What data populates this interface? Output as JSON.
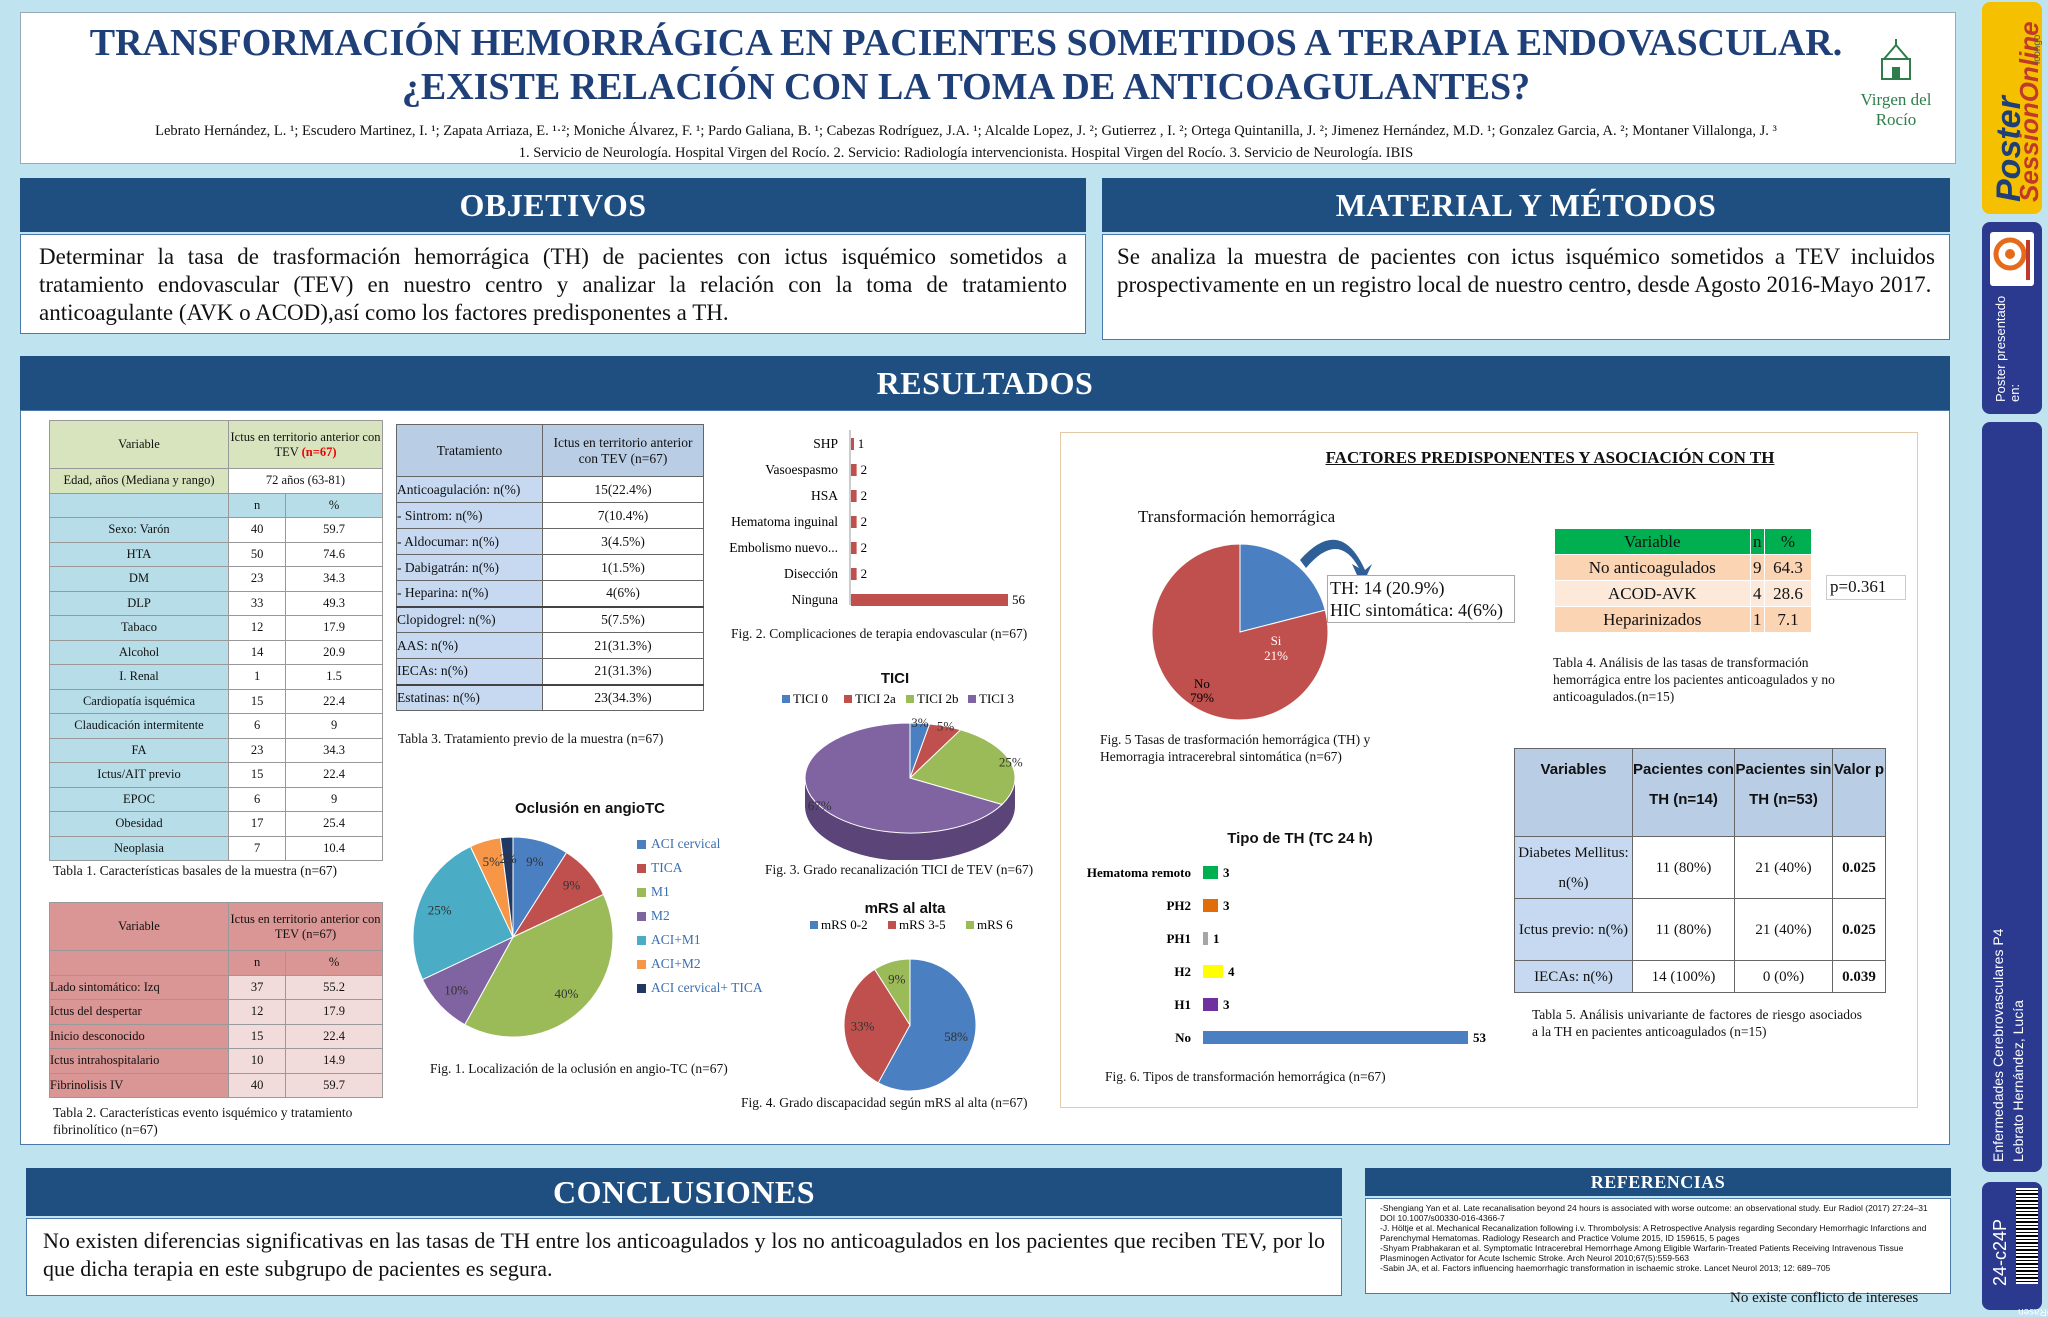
{
  "header": {
    "title_line1": "TRANSFORMACIÓN HEMORRÁGICA EN PACIENTES SOMETIDOS A TERAPIA ENDOVASCULAR.",
    "title_line2": "¿EXISTE RELACIÓN CON LA TOMA DE ANTICOAGULANTES?",
    "authors": "Lebrato Hernández, L. ¹; Escudero Martinez, I. ¹; Zapata Arriaza, E. ¹·²; Moniche Álvarez, F. ¹; Pardo Galiana, B. ¹; Cabezas Rodríguez, J.A. ¹; Alcalde Lopez, J. ²; Gutierrez , I. ²; Ortega Quintanilla, J. ²; Jimenez Hernández, M.D. ¹; Gonzalez Garcia, A. ²; Montaner Villalonga, J. ³",
    "affiliations": "1. Servicio de Neurología. Hospital Virgen del Rocío. 2. Servicio: Radiología intervencionista. Hospital Virgen del Rocío. 3. Servicio de Neurología. IBIS",
    "logo": "Virgen del Rocío"
  },
  "objetivos": {
    "title": "OBJETIVOS",
    "text": "Determinar la tasa de trasformación hemorrágica (TH) de pacientes con ictus isquémico sometidos a tratamiento endovascular (TEV) en nuestro centro y analizar la relación con la toma de tratamiento anticoagulante (AVK o ACOD),así como los factores predisponentes a TH."
  },
  "metodos": {
    "title": "MATERIAL Y MÉTODOS",
    "text": "Se analiza la muestra de pacientes con ictus isquémico sometidos a TEV incluidos prospectivamente en un registro local de nuestro centro, desde Agosto 2016-Mayo 2017."
  },
  "resultados": {
    "title": "RESULTADOS"
  },
  "tabla1": {
    "h_var": "Variable",
    "h_ictus": "Ictus en territorio anterior con TEV ",
    "h_n": "(n=67)",
    "edad_label": "Edad, años (Mediana y rango)",
    "edad_val": "72 años (63-81)",
    "sub_n": "n",
    "sub_pct": "%",
    "rows": [
      [
        "Sexo: Varón",
        "40",
        "59.7"
      ],
      [
        "HTA",
        "50",
        "74.6"
      ],
      [
        "DM",
        "23",
        "34.3"
      ],
      [
        "DLP",
        "33",
        "49.3"
      ],
      [
        "Tabaco",
        "12",
        "17.9"
      ],
      [
        "Alcohol",
        "14",
        "20.9"
      ],
      [
        "I. Renal",
        "1",
        "1.5"
      ],
      [
        "Cardiopatía isquémica",
        "15",
        "22.4"
      ],
      [
        "Claudicación intermitente",
        "6",
        "9"
      ],
      [
        "FA",
        "23",
        "34.3"
      ],
      [
        "Ictus/AIT previo",
        "15",
        "22.4"
      ],
      [
        "EPOC",
        "6",
        "9"
      ],
      [
        "Obesidad",
        "17",
        "25.4"
      ],
      [
        "Neoplasia",
        "7",
        "10.4"
      ]
    ],
    "caption": "Tabla 1. Características basales de la muestra (n=67)"
  },
  "tabla2": {
    "h_var": "Variable",
    "h_ictus": "Ictus en territorio anterior con TEV (n=67)",
    "sub_n": "n",
    "sub_pct": "%",
    "rows": [
      [
        "Lado sintomático: Izq",
        "37",
        "55.2"
      ],
      [
        "Ictus del despertar",
        "12",
        "17.9"
      ],
      [
        "Inicio desconocido",
        "15",
        "22.4"
      ],
      [
        "Ictus intrahospitalario",
        "10",
        "14.9"
      ],
      [
        "Fibrinolisis IV",
        "40",
        "59.7"
      ]
    ],
    "caption": "Tabla 2. Características evento isquémico y tratamiento fibrinolítico (n=67)"
  },
  "tabla3": {
    "h_trat": "Tratamiento",
    "h_ictus": "Ictus en territorio anterior con TEV (n=67)",
    "rows": [
      [
        "Anticoagulación: n(%)",
        "15(22.4%)"
      ],
      [
        "-  Sintrom: n(%)",
        "7(10.4%)"
      ],
      [
        "-  Aldocumar: n(%)",
        "3(4.5%)"
      ],
      [
        "-  Dabigatrán: n(%)",
        "1(1.5%)"
      ],
      [
        "-  Heparina: n(%)",
        "4(6%)"
      ],
      [
        "Clopidogrel: n(%)",
        "5(7.5%)"
      ],
      [
        "AAS: n(%)",
        "21(31.3%)"
      ],
      [
        "IECAs: n(%)",
        "21(31.3%)"
      ],
      [
        "Estatinas: n(%)",
        "23(34.3%)"
      ]
    ],
    "caption": "Tabla 3. Tratamiento previo de la muestra (n=67)"
  },
  "fig1": {
    "title": "Oclusión en angioTC",
    "caption": "Fig. 1. Localización de la oclusión en angio-TC (n=67)"
  },
  "fig2": {
    "caption": "Fig. 2. Complicaciones de terapia endovascular (n=67)"
  },
  "fig3": {
    "title": "TICI",
    "caption": "Fig. 3. Grado recanalización TICI de TEV (n=67)"
  },
  "fig4": {
    "title": "mRS al alta",
    "caption": "Fig. 4. Grado discapacidad según mRS al alta (n=67)"
  },
  "factores": {
    "title": "FACTORES PREDISPONENTES Y ASOCIACIÓN CON TH"
  },
  "fig5": {
    "title": "Transformación hemorrágica",
    "slice_si": "Si",
    "slice_si_pct": "21%",
    "slice_no": "No",
    "slice_no_pct": "79%",
    "box_line1": "TH: 14 (20.9%)",
    "box_line2": "HIC sintomática: 4(6%)",
    "caption": "Fig. 5 Tasas de trasformación hemorrágica (TH) y Hemorragia intracerebral sintomática (n=67)"
  },
  "fig6": {
    "title": "Tipo de TH (TC 24 h)",
    "caption": "Fig. 6. Tipos de transformación hemorrágica (n=67)"
  },
  "tabla4": {
    "headers": [
      "Variable",
      "n",
      "%"
    ],
    "rows": [
      [
        "No anticoagulados",
        "9",
        "64.3"
      ],
      [
        "ACOD-AVK",
        "4",
        "28.6"
      ],
      [
        "Heparinizados",
        "1",
        "7.1"
      ]
    ],
    "p": "p=0.361",
    "caption": "Tabla 4. Análisis de las tasas de transformación hemorrágica entre los pacientes anticoagulados y no anticoagulados.(n=15)"
  },
  "tabla5": {
    "headers": [
      "Variables",
      "Pacientes con TH (n=14)",
      "Pacientes sin TH (n=53)",
      "Valor p"
    ],
    "rows": [
      [
        "Diabetes Mellitus: n(%)",
        "11 (80%)",
        "21 (40%)",
        "0.025"
      ],
      [
        "Ictus previo: n(%)",
        "11 (80%)",
        "21 (40%)",
        "0.025"
      ],
      [
        "IECAs: n(%)",
        "14 (100%)",
        "0 (0%)",
        "0.039"
      ]
    ],
    "caption": "Tabla 5. Análisis univariante  de factores de riesgo asociados a la TH en pacientes anticoagulados (n=15)"
  },
  "conclusiones": {
    "title": "CONCLUSIONES",
    "text": "No existen diferencias significativas en las tasas de TH entre los anticoagulados y los no anticoagulados en los pacientes que reciben TEV, por lo que dicha terapia en este subgrupo de pacientes es segura."
  },
  "referencias": {
    "title": "REFERENCIAS",
    "items": [
      "-Shengiang Yan et al. Late recanalisation beyond 24 hours is associated with worse outcome: an observational study. Eur Radiol (2017) 27:24–31  DOI 10.1007/s00330-016-4366-7",
      "-J. Höltje et al. Mechanical Recanalization following i.v. Thrombolysis:  A Retrospective Analysis regarding Secondary Hemorrhagic Infarctions and Parenchymal Hematomas. Radiology Research and Practice Volume 2015, ID 159615, 5 pages",
      "-Shyam Prabhakaran et al. Symptomatic Intracerebral Hemorrhage  Among Eligible Warfarin-Treated  Patients Receiving Intravenous Tissue Plasminogen Activator for Acute Ischemic Stroke. Arch Neurol 2010;67(5):559-563",
      "-Sabin JA, et al. Factors influencing haemorrhagic transformation in ischaemic stroke. Lancet Neurol 2013; 12: 689–705"
    ]
  },
  "footer": {
    "conflict": "No existe conflicto de intereses"
  },
  "sidebar": {
    "brand_top": "Poster",
    "brand_bottom": "SessionOnline",
    "brand_small": "icongo",
    "presentado": "Poster presentado en:",
    "session": "Enfermedades Cerebrovasculares P4",
    "author": "Lebrato Hernández, Lucía",
    "code": "24-c24P",
    "barcode_num": "69Rasen"
  },
  "chart_data": [
    {
      "type": "pie",
      "id": "fig1",
      "title": "Oclusión en angioTC",
      "categories": [
        "ACI cervical",
        "TICA",
        "M1",
        "M2",
        "ACI+M1",
        "ACI+M2",
        "ACI cervical+ TICA"
      ],
      "values": [
        9,
        9,
        40,
        10,
        25,
        5,
        2
      ],
      "colors": [
        "#4a7fc1",
        "#c0504d",
        "#9bbb59",
        "#8064a2",
        "#4bacc6",
        "#f79646",
        "#1f3864"
      ]
    },
    {
      "type": "bar",
      "id": "fig2",
      "categories": [
        "SHP",
        "Vasoespasmo",
        "HSA",
        "Hematoma inguinal",
        "Embolismo nuevo...",
        "Disección",
        "Ninguna"
      ],
      "values": [
        1,
        2,
        2,
        2,
        2,
        2,
        56
      ],
      "color": "#c0504d"
    },
    {
      "type": "pie",
      "id": "fig3",
      "title": "TICI",
      "categories": [
        "TICI 0",
        "TICI 2a",
        "TICI 2b",
        "TICI 3"
      ],
      "values": [
        3,
        5,
        25,
        67
      ],
      "colors": [
        "#4a7fc1",
        "#c0504d",
        "#9bbb59",
        "#8064a2"
      ]
    },
    {
      "type": "pie",
      "id": "fig4",
      "title": "mRS al alta",
      "categories": [
        "mRS 0-2",
        "mRS 3-5",
        "mRS 6"
      ],
      "values": [
        58,
        33,
        9
      ],
      "colors": [
        "#4a7fc1",
        "#c0504d",
        "#9bbb59"
      ]
    },
    {
      "type": "pie",
      "id": "fig5",
      "title": "Transformación hemorrágica",
      "categories": [
        "Si",
        "No"
      ],
      "values": [
        21,
        79
      ],
      "colors": [
        "#4a7fc1",
        "#c0504d"
      ]
    },
    {
      "type": "bar",
      "id": "fig6",
      "title": "Tipo de TH (TC 24 h)",
      "categories": [
        "Hematoma remoto",
        "PH2",
        "PH1",
        "H2",
        "H1",
        "No"
      ],
      "values": [
        3,
        3,
        1,
        4,
        3,
        53
      ],
      "colors": [
        "#00b050",
        "#e36c0a",
        "#a6a6a6",
        "#ffff00",
        "#7030a0",
        "#4a7fc1"
      ]
    }
  ]
}
